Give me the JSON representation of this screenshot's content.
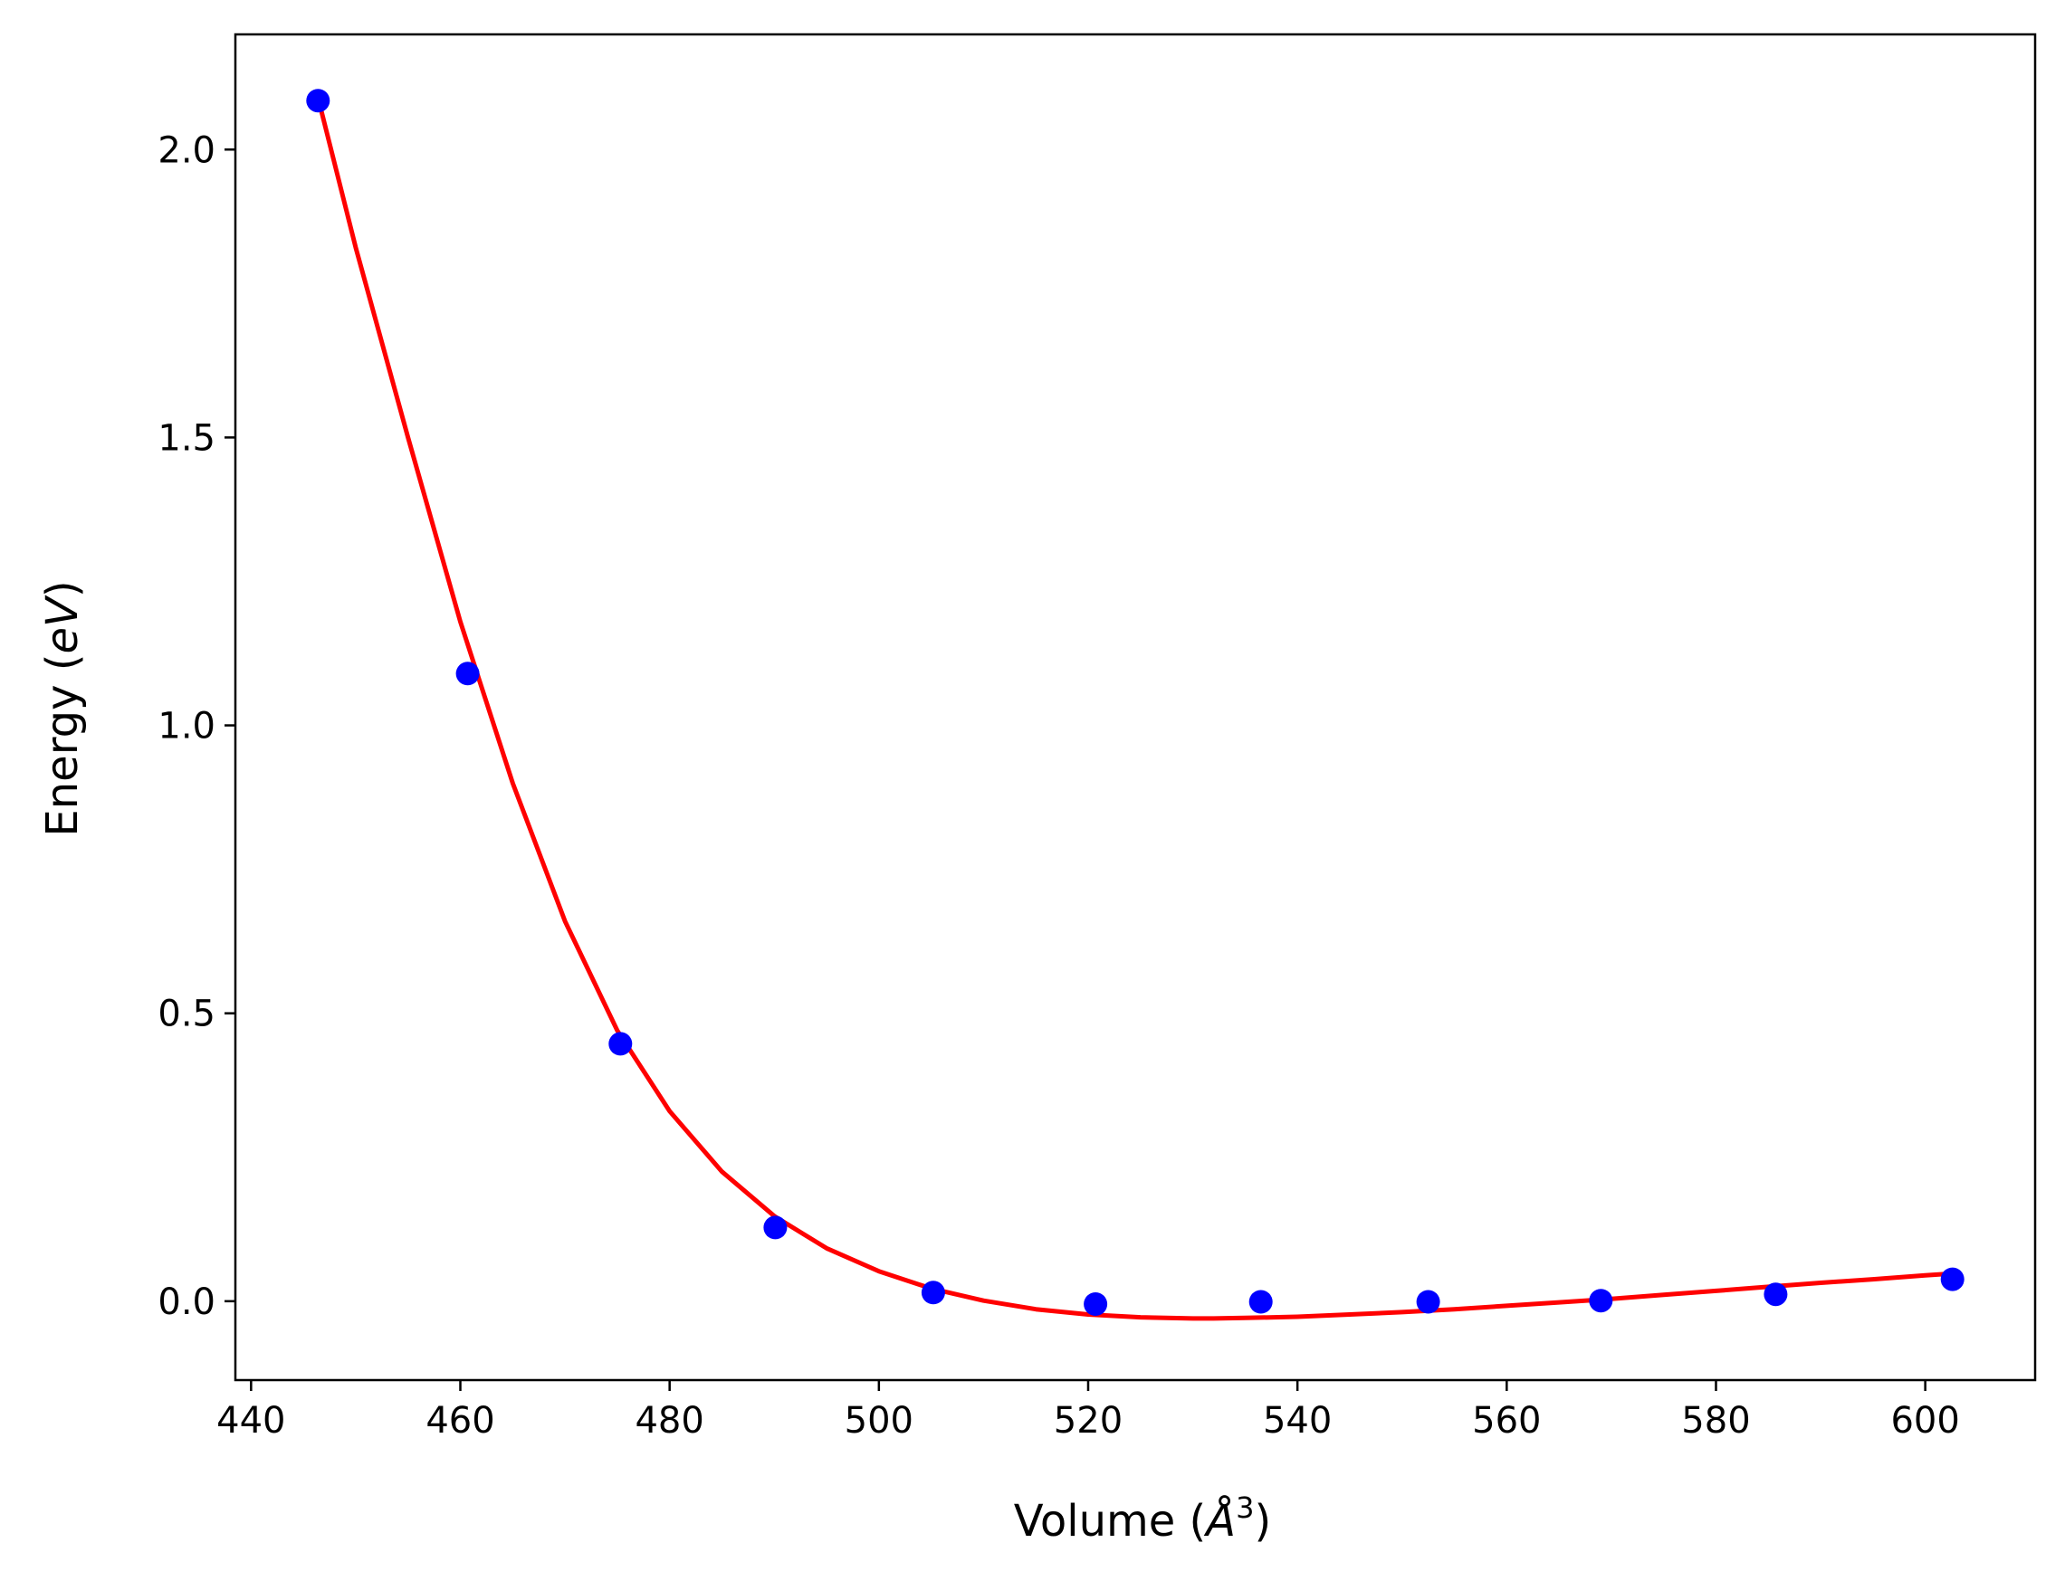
{
  "chart_data": {
    "type": "scatter",
    "title": "",
    "xlabel": "Volume (Å³)",
    "xlabel_parts": {
      "prefix": "Volume (",
      "symbol": "Å",
      "exponent": "3",
      "suffix": ")"
    },
    "ylabel": "Energy (eV)",
    "ylabel_parts": {
      "prefix": "Energy (",
      "unit": "eV",
      "suffix": ")"
    },
    "xlim": [
      438.5,
      610.5
    ],
    "ylim": [
      -0.137,
      2.2
    ],
    "xticks": [
      440,
      460,
      480,
      500,
      520,
      540,
      560,
      580,
      600
    ],
    "xtick_labels": [
      "440",
      "460",
      "480",
      "500",
      "520",
      "540",
      "560",
      "580",
      "600"
    ],
    "yticks": [
      0.0,
      0.5,
      1.0,
      1.5,
      2.0
    ],
    "ytick_labels": [
      "0.0",
      "0.5",
      "1.0",
      "1.5",
      "2.0"
    ],
    "grid": false,
    "series": [
      {
        "kind": "points",
        "color": "#0000ff",
        "x": [
          446.4,
          460.7,
          475.3,
          490.1,
          505.2,
          520.7,
          536.5,
          552.5,
          569.0,
          585.7,
          602.6
        ],
        "y": [
          2.085,
          1.09,
          0.447,
          0.128,
          0.015,
          -0.005,
          -0.001,
          -0.001,
          0.001,
          0.012,
          0.038
        ]
      },
      {
        "kind": "fit-curve",
        "color": "#ff0000",
        "x": [
          446.4,
          450,
          455,
          460,
          465,
          470,
          475,
          480,
          485,
          490,
          495,
          500,
          505,
          510,
          515,
          520,
          525,
          530,
          532,
          535,
          540,
          545,
          550,
          555,
          560,
          565,
          570,
          575,
          580,
          585,
          590,
          595,
          600,
          602.6
        ],
        "y": [
          2.09,
          1.83,
          1.5,
          1.18,
          0.9,
          0.66,
          0.47,
          0.33,
          0.225,
          0.148,
          0.092,
          0.052,
          0.022,
          0.001,
          -0.014,
          -0.023,
          -0.028,
          -0.03,
          -0.03,
          -0.029,
          -0.027,
          -0.023,
          -0.019,
          -0.014,
          -0.008,
          -0.002,
          0.004,
          0.011,
          0.018,
          0.025,
          0.032,
          0.038,
          0.045,
          0.048
        ]
      }
    ]
  }
}
